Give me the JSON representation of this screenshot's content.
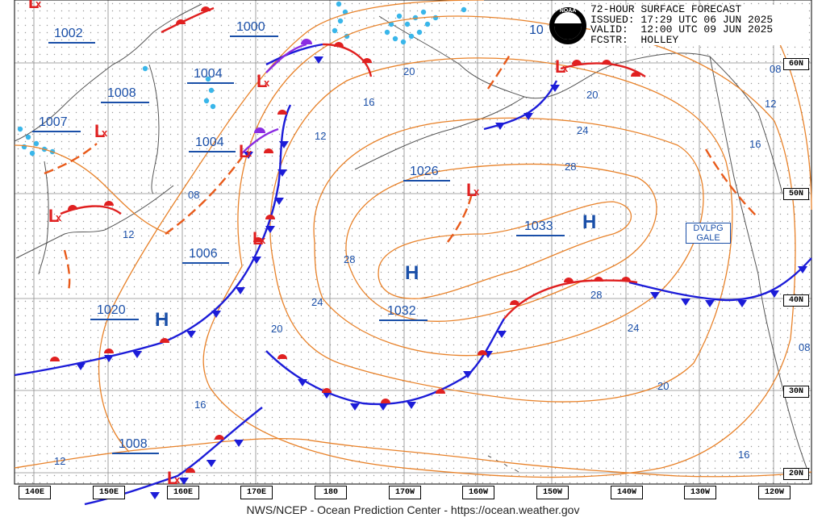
{
  "header": {
    "line1": "72-HOUR SURFACE FORECAST",
    "line2": "ISSUED: 17:29 UTC 06 JUN 2025",
    "line3": "VALID:  12:00 UTC 09 JUN 2025",
    "line4": "FCSTR:  HOLLEY"
  },
  "logo_text": "NOAA",
  "footer": "NWS/NCEP - Ocean Prediction Center - https://ocean.weather.gov",
  "warning_box": {
    "line1": "DVLPG",
    "line2": "GALE"
  },
  "longitude_labels": [
    "140E",
    "150E",
    "160E",
    "170E",
    "180",
    "170W",
    "160W",
    "150W",
    "140W",
    "130W",
    "120W"
  ],
  "latitude_labels": [
    "60N",
    "50N",
    "40N",
    "30N",
    "20N"
  ],
  "pressure_centers": [
    {
      "symbol": "H",
      "value": "1033"
    },
    {
      "symbol": "H",
      "value": "1032"
    },
    {
      "symbol": "H",
      "value": "1020"
    },
    {
      "symbol": "L",
      "value": "1002"
    },
    {
      "symbol": "L",
      "value": "1000"
    },
    {
      "symbol": "L",
      "value": "1004"
    },
    {
      "symbol": "L",
      "value": "1008"
    },
    {
      "symbol": "L",
      "value": "1007"
    },
    {
      "symbol": "L",
      "value": "1004"
    },
    {
      "symbol": "L",
      "value": "1006"
    },
    {
      "symbol": "L",
      "value": "1026"
    },
    {
      "symbol": "L",
      "value": "1008"
    },
    {
      "symbol": "L",
      "value": "10"
    }
  ],
  "isobar_labels": [
    "20",
    "16",
    "12",
    "08",
    "12",
    "28",
    "24",
    "20",
    "16",
    "12",
    "20",
    "24",
    "28",
    "08",
    "12",
    "16",
    "28",
    "24",
    "20",
    "16",
    "08"
  ],
  "colors": {
    "isobar": "#e8822a",
    "cold_front": "#1c1cd8",
    "warm_front": "#e02020",
    "occluded": "#8a2be2",
    "trough": "#e85a1a",
    "center_label": "#1a4fa8",
    "ice": "#39b6ea",
    "coast": "#555555",
    "grid": "#8a8a8a"
  },
  "symbols": {
    "low_marker": "L",
    "high_marker": "H",
    "low_x": "x"
  }
}
